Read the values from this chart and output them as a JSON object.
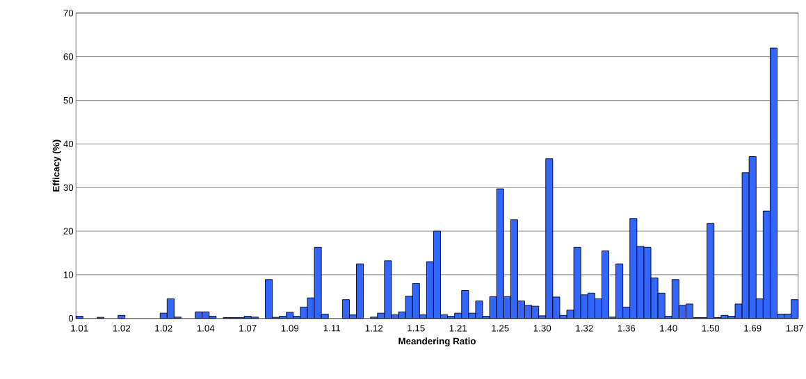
{
  "chart_data": {
    "type": "bar",
    "xlabel": "Meandering Ratio",
    "ylabel": "Efficacy (%)",
    "categories": [
      "1.01",
      null,
      null,
      null,
      null,
      null,
      "1.02",
      null,
      null,
      null,
      null,
      null,
      "1.02",
      null,
      null,
      null,
      null,
      null,
      "1.04",
      null,
      null,
      null,
      null,
      null,
      "1.07",
      null,
      null,
      null,
      null,
      null,
      "1.09",
      null,
      null,
      null,
      null,
      null,
      "1.11",
      null,
      null,
      null,
      null,
      null,
      "1.12",
      null,
      null,
      null,
      null,
      null,
      "1.15",
      null,
      null,
      null,
      null,
      null,
      "1.21",
      null,
      null,
      null,
      null,
      null,
      "1.25",
      null,
      null,
      null,
      null,
      null,
      "1.30",
      null,
      null,
      null,
      null,
      null,
      "1.32",
      null,
      null,
      null,
      null,
      null,
      "1.36",
      null,
      null,
      null,
      null,
      null,
      "1.40",
      null,
      null,
      null,
      null,
      null,
      "1.50",
      null,
      null,
      null,
      null,
      null,
      "1.69",
      null,
      null,
      null,
      null,
      null,
      "1.87"
    ],
    "values": [
      0.5,
      null,
      null,
      0.25,
      null,
      null,
      0.7,
      null,
      null,
      null,
      null,
      null,
      1.2,
      4.5,
      0.3,
      null,
      null,
      1.5,
      1.5,
      0.5,
      null,
      0.2,
      0.2,
      0.2,
      0.5,
      0.3,
      null,
      8.9,
      0.25,
      0.5,
      1.4,
      0.5,
      2.6,
      4.7,
      16.3,
      1.0,
      null,
      null,
      4.3,
      0.8,
      12.5,
      null,
      0.3,
      1.2,
      13.2,
      0.8,
      1.5,
      5.1,
      8.0,
      0.8,
      13.0,
      20.0,
      0.8,
      0.5,
      1.2,
      6.4,
      1.2,
      4.0,
      0.5,
      5.0,
      29.7,
      5.0,
      22.6,
      4.0,
      3.0,
      2.8,
      0.6,
      36.6,
      4.9,
      0.7,
      1.9,
      16.3,
      5.4,
      5.8,
      4.5,
      15.5,
      0.3,
      12.5,
      2.6,
      22.9,
      16.5,
      16.3,
      9.3,
      5.8,
      0.5,
      8.9,
      3.0,
      3.3,
      0.2,
      0.2,
      21.8,
      0.2,
      0.7,
      0.5,
      3.3,
      33.4,
      37.1,
      4.5,
      24.6,
      62.0,
      1.0,
      1.0,
      4.3
    ],
    "color": "#3366ff",
    "ylim": [
      0,
      70
    ],
    "yticks": [
      0,
      10,
      20,
      30,
      40,
      50,
      60,
      70
    ],
    "grid": "y"
  }
}
